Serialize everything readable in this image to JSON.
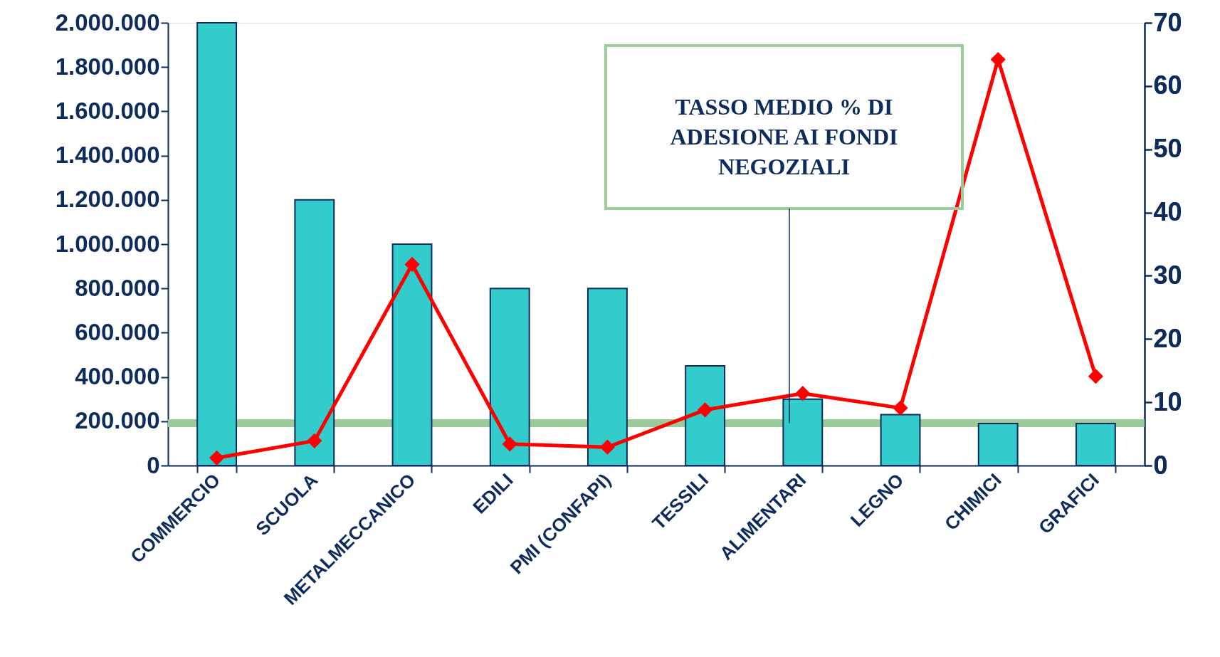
{
  "chart_data": {
    "type": "bar",
    "categories": [
      "COMMERCIO",
      "SCUOLA",
      "METALMECCANICO",
      "EDILI",
      "PMI (CONFAPI)",
      "TESSILI",
      "ALIMENTARI",
      "LEGNO",
      "CHIMICI",
      "GRAFICI"
    ],
    "series": [
      {
        "color": "#33cccc",
        "values": [
          2000000,
          1200000,
          1000000,
          800000,
          800000,
          450000,
          300000,
          230000,
          190000,
          190000
        ]
      },
      {
        "type": "line",
        "axis": "y2",
        "color": "#ff0000",
        "marker": "diamond",
        "values": [
          1.2,
          3.9,
          31.8,
          3.4,
          2.9,
          8.8,
          11.4,
          9.1,
          64.2,
          14.1
        ]
      }
    ],
    "ylim": [
      0,
      2000000
    ],
    "yticks": [
      {
        "value": 0,
        "label": "0"
      },
      {
        "value": 200000,
        "label": "200.000"
      },
      {
        "value": 400000,
        "label": "400.000"
      },
      {
        "value": 600000,
        "label": "600.000"
      },
      {
        "value": 800000,
        "label": "800.000"
      },
      {
        "value": 1000000,
        "label": "1.000.000"
      },
      {
        "value": 1200000,
        "label": "1.200.000"
      },
      {
        "value": 1400000,
        "label": "1.400.000"
      },
      {
        "value": 1600000,
        "label": "1.600.000"
      },
      {
        "value": 1800000,
        "label": "1.800.000"
      },
      {
        "value": 2000000,
        "label": "2.000.000"
      }
    ],
    "y2lim": [
      0,
      70
    ],
    "y2ticks": [
      0,
      10,
      20,
      30,
      40,
      50,
      60,
      70
    ],
    "ref_lines": [
      {
        "axis": "y2",
        "value": 6.7,
        "label": "TASSO MEDIO % DI ADESIONE AI FONDI NEGOZIALI",
        "color": "#99cc99"
      }
    ],
    "grid": false
  }
}
